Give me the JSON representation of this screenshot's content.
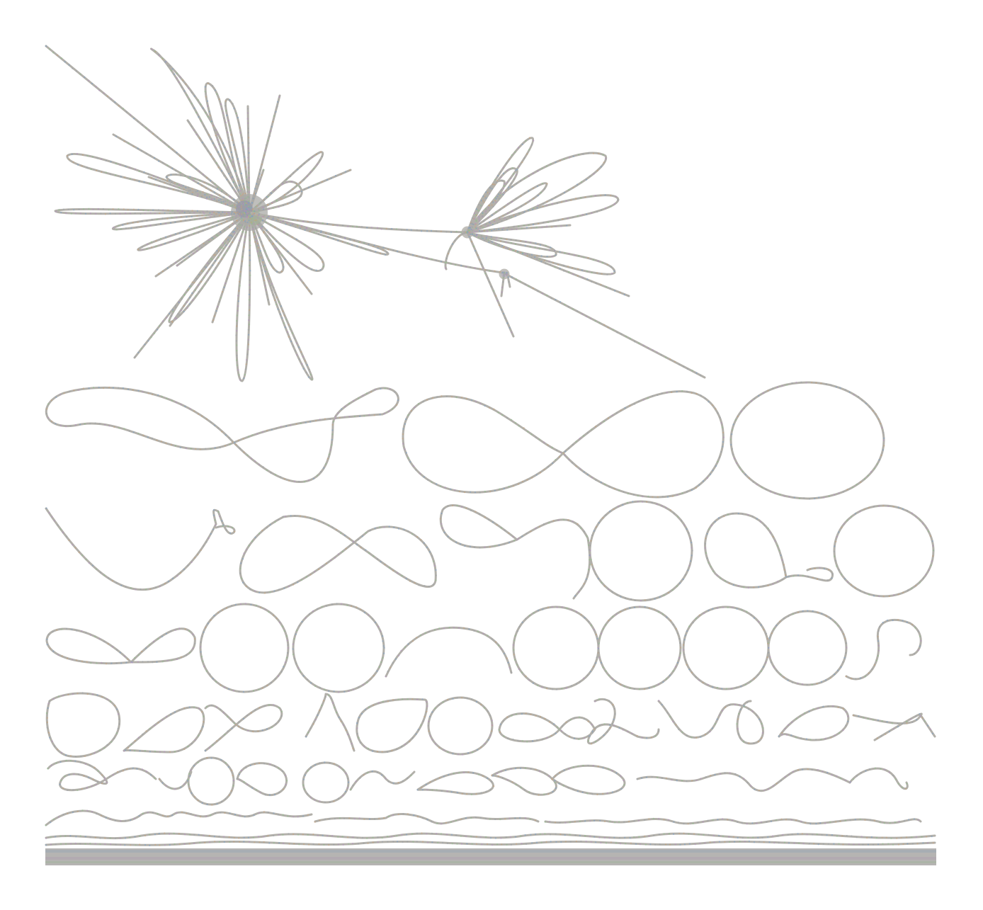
{
  "diagram": {
    "type": "graph-layout",
    "background": "#ffffff",
    "stroke_color": "#b2b0aa",
    "accent_colors": [
      "#7a9ec7",
      "#b58fc0",
      "#8fbf8a",
      "#c9a27a",
      "#9aa0a8"
    ],
    "components": [
      {
        "id": "giant-component",
        "shape": "hub-and-spoke"
      },
      {
        "id": "secondary-cluster",
        "shape": "hub-and-spoke"
      },
      {
        "id": "small-components",
        "shape": "loops-and-chains"
      }
    ]
  }
}
